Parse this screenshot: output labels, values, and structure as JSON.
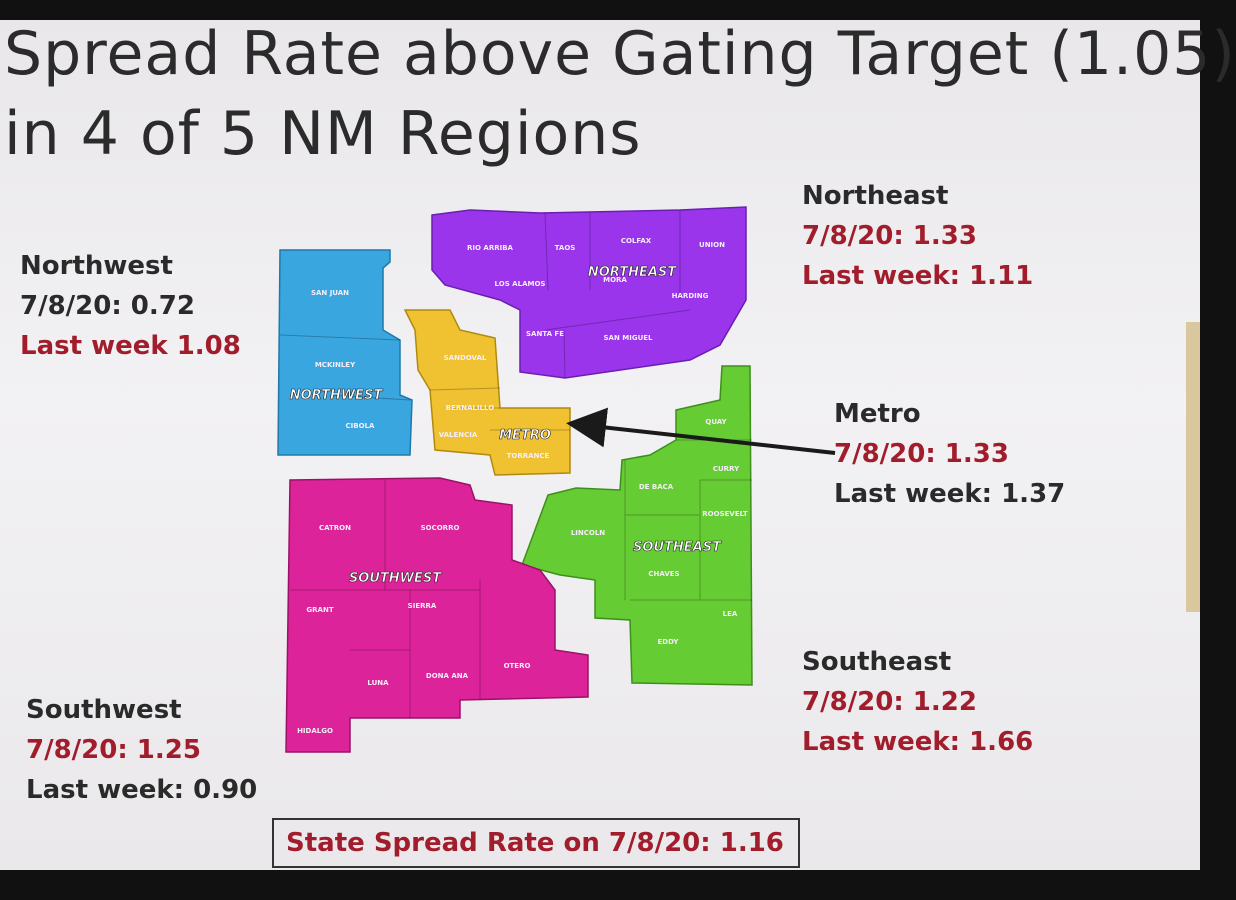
{
  "title": [
    "Spread Rate above Gating Target (1.05)",
    "in 4 of 5 NM Regions"
  ],
  "regions": [
    {
      "name": "Northwest",
      "current": "7/8/20: 0.72",
      "last_week": "Last week 1.08"
    },
    {
      "name": "Northeast",
      "current": "7/8/20: 1.33",
      "last_week": "Last week: 1.11"
    },
    {
      "name": "Metro",
      "current": "7/8/20: 1.33",
      "last_week": "Last week: 1.37"
    },
    {
      "name": "Southeast",
      "current": "7/8/20: 1.22",
      "last_week": "Last week: 1.66"
    },
    {
      "name": "Southwest",
      "current": "7/8/20: 1.25",
      "last_week": "Last week: 0.90"
    }
  ],
  "map": {
    "regions": [
      {
        "label": "NORTHWEST",
        "counties": [
          "SAN JUAN",
          "MCKINLEY",
          "CIBOLA"
        ]
      },
      {
        "label": "NORTHEAST",
        "counties": [
          "RIO ARRIBA",
          "TAOS",
          "COLFAX",
          "UNION",
          "LOS ALAMOS",
          "MORA",
          "HARDING",
          "SANTA FE",
          "SAN MIGUEL"
        ]
      },
      {
        "label": "METRO",
        "counties": [
          "SANDOVAL",
          "BERNALILLO",
          "VALENCIA",
          "TORRANCE"
        ]
      },
      {
        "label": "SOUTHEAST",
        "counties": [
          "QUAY",
          "CURRY",
          "DE BACA",
          "ROOSEVELT",
          "LINCOLN",
          "CHAVES",
          "LEA",
          "EDDY"
        ]
      },
      {
        "label": "SOUTHWEST",
        "counties": [
          "CATRON",
          "SOCORRO",
          "GRANT",
          "SIERRA",
          "LUNA",
          "DONA ANA",
          "OTERO",
          "HIDALGO"
        ]
      }
    ]
  },
  "footer": "State Spread Rate on 7/8/20: 1.16"
}
